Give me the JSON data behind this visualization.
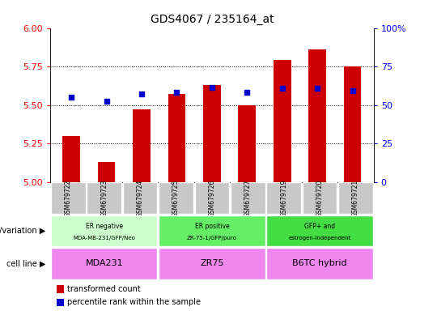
{
  "title": "GDS4067 / 235164_at",
  "samples": [
    "GSM679722",
    "GSM679723",
    "GSM679724",
    "GSM679725",
    "GSM679726",
    "GSM679727",
    "GSM679719",
    "GSM679720",
    "GSM679721"
  ],
  "bar_values": [
    5.3,
    5.13,
    5.47,
    5.57,
    5.63,
    5.5,
    5.79,
    5.86,
    5.75
  ],
  "percentile_values": [
    55.0,
    52.5,
    57.0,
    58.0,
    61.5,
    58.0,
    61.0,
    61.0,
    59.0
  ],
  "ylim_left": [
    5.0,
    6.0
  ],
  "ylim_right": [
    0,
    100
  ],
  "yticks_left": [
    5.0,
    5.25,
    5.5,
    5.75,
    6.0
  ],
  "yticks_right": [
    0,
    25,
    50,
    75,
    100
  ],
  "bar_color": "#cc0000",
  "dot_color": "#0000cc",
  "bar_width": 0.5,
  "groups": [
    {
      "label": "ER negative\nMDA-MB-231/GFP/Neo",
      "span": [
        0,
        3
      ],
      "color": "#ccffcc",
      "cell_line": "MDA231"
    },
    {
      "label": "ER positive\nZR-75-1/GFP/puro",
      "span": [
        3,
        6
      ],
      "color": "#66ee66",
      "cell_line": "ZR75"
    },
    {
      "label": "GFP+ and\nestrogen-independent",
      "span": [
        6,
        9
      ],
      "color": "#44dd44",
      "cell_line": "B6TC hybrid"
    }
  ],
  "cell_color": "#ee88ee",
  "gray_color": "#c8c8c8",
  "plot_bg": "#ffffff",
  "geno_label": "genotype/variation",
  "cell_label": "cell line",
  "legend_bar_label": "transformed count",
  "legend_dot_label": "percentile rank within the sample"
}
